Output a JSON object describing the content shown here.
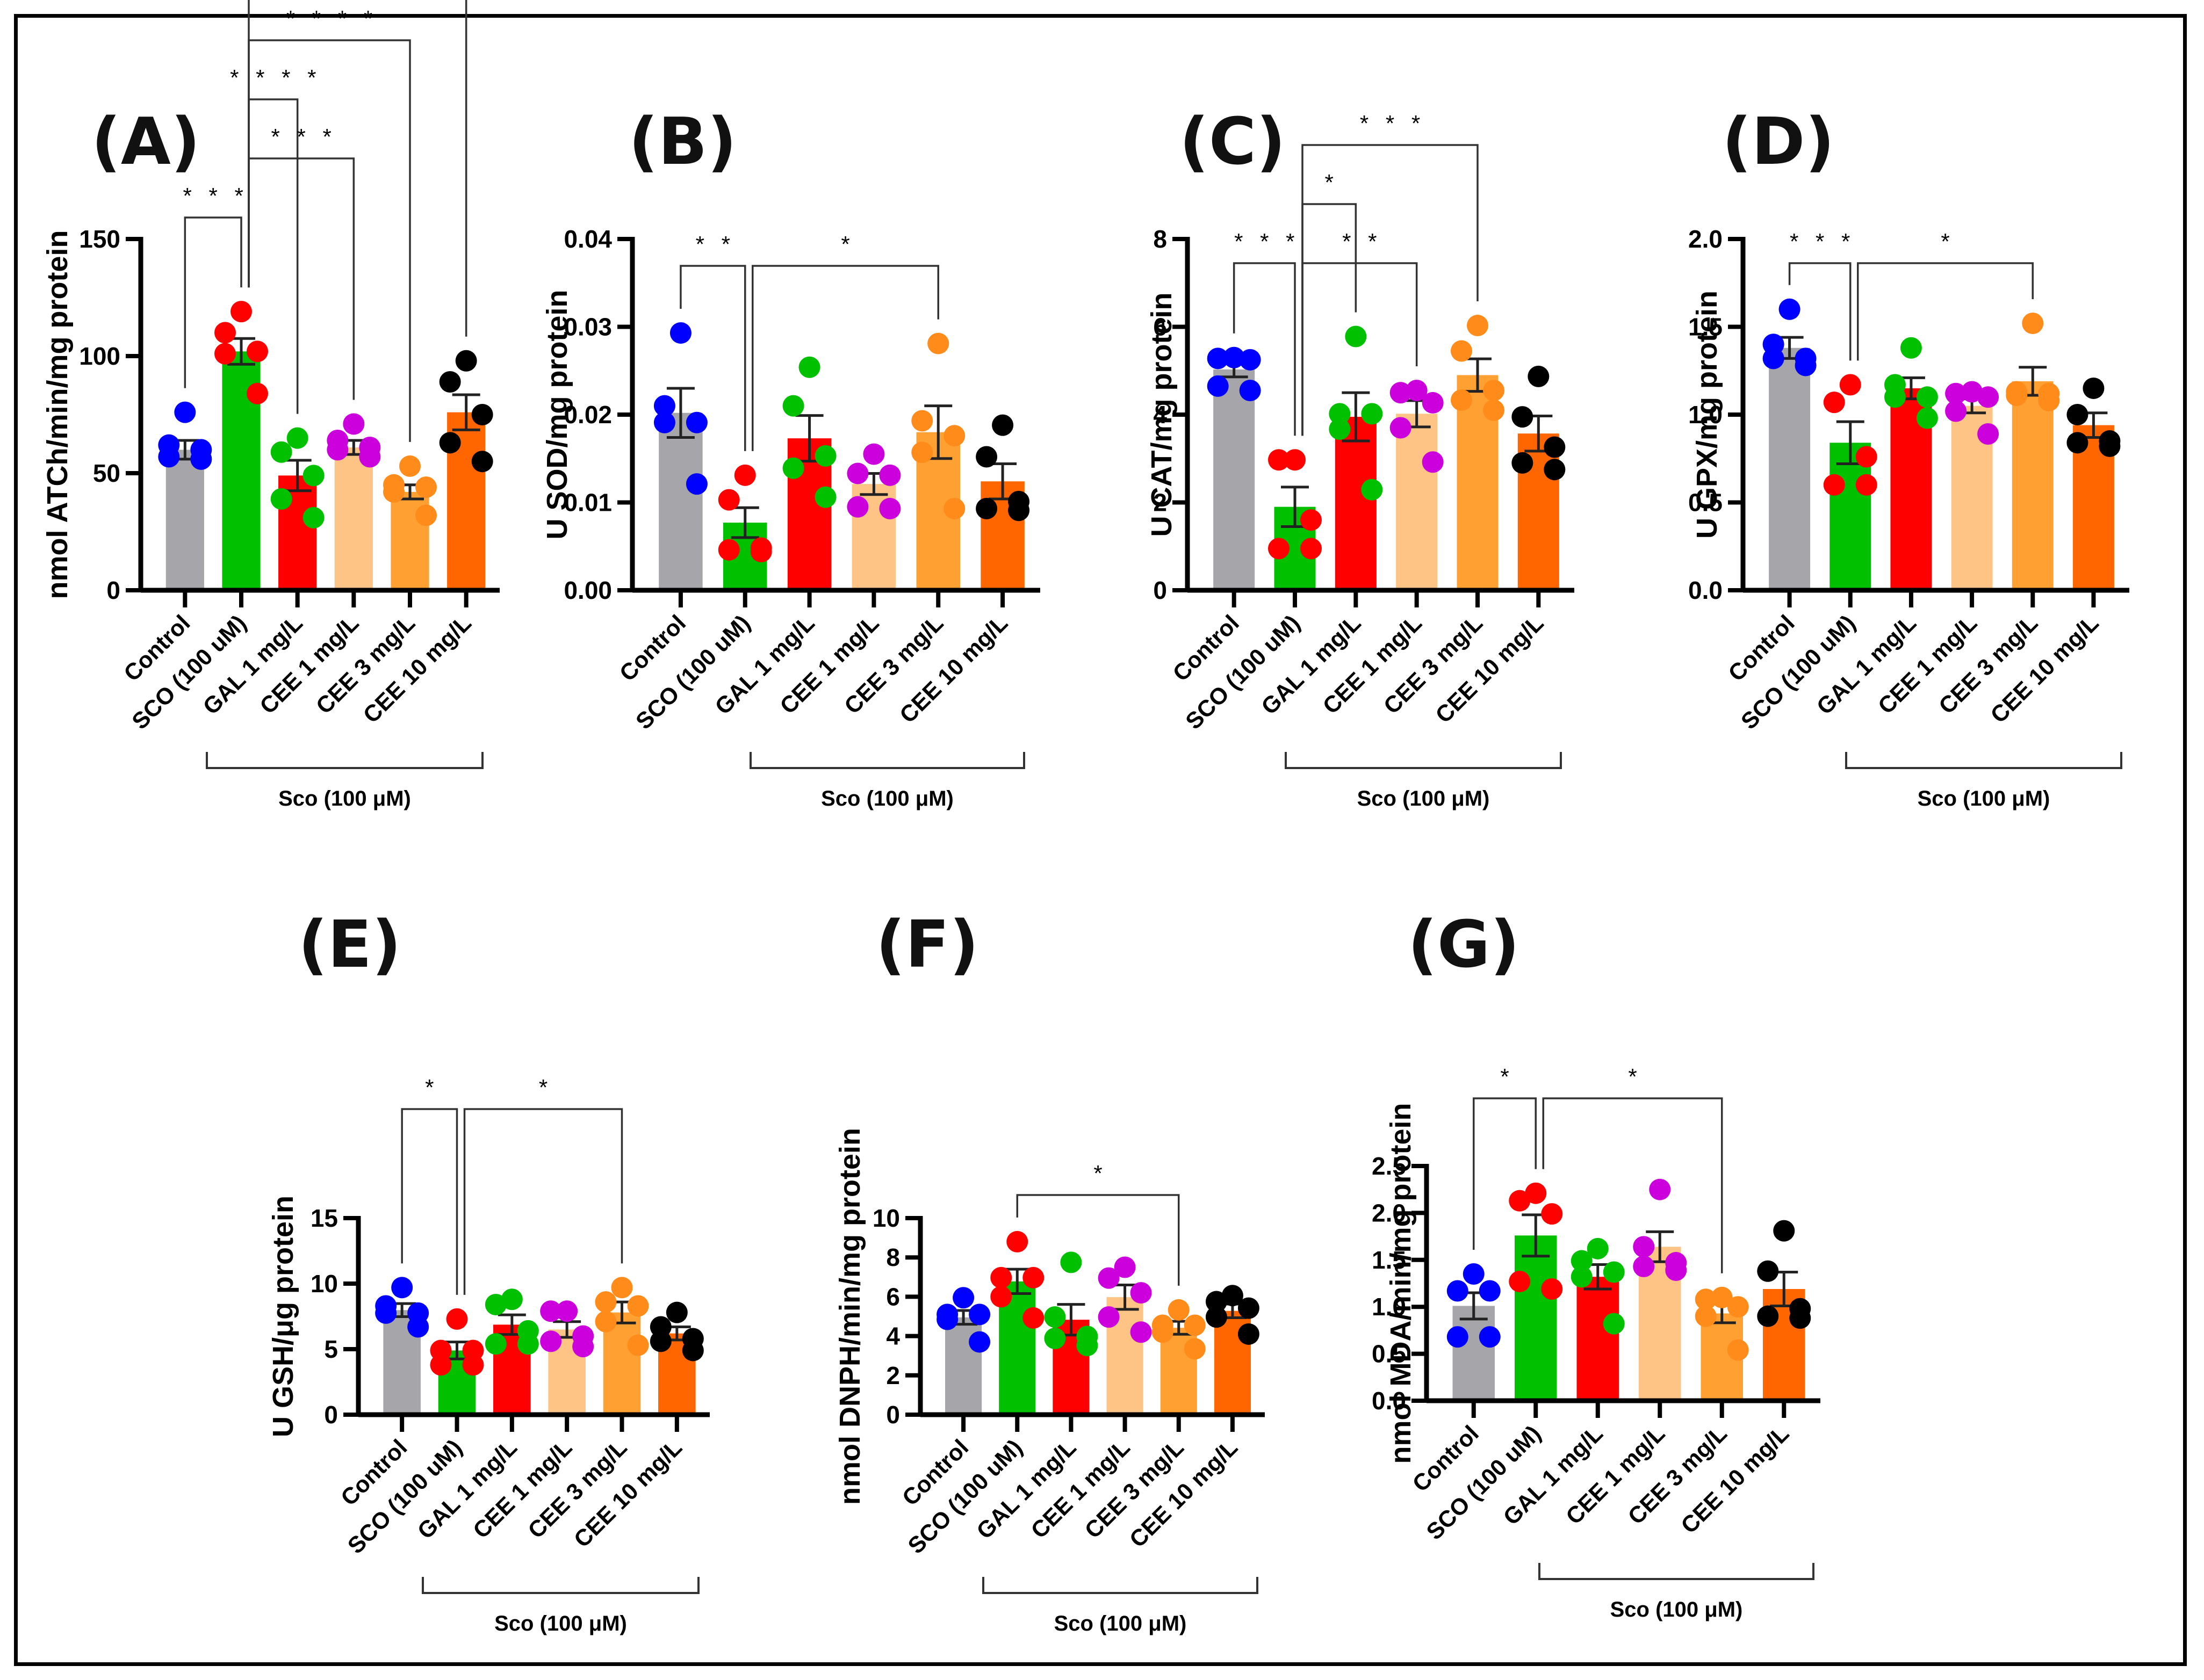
{
  "figure": {
    "group_bracket_label": "Sco (100 μM)",
    "categories": [
      "Control",
      "SCO (100 uM)",
      "GAL 1 mg/L",
      "CEE 1 mg/L",
      "CEE 3 mg/L",
      "CEE 10 mg/L"
    ],
    "bar_colors": [
      "#a5a5aa",
      "#00c000",
      "#ff0000",
      "#fdc486",
      "#ffa033",
      "#ff6600"
    ],
    "point_colors": [
      "#0000ff",
      "#ff0000",
      "#00c000",
      "#cc00dd",
      "#ff8c1a",
      "#000000"
    ]
  },
  "chart_data": [
    {
      "type": "bar",
      "panel": "(A)",
      "title": "",
      "xlabel": "",
      "ylabel": "nmol ATCh/min/mg protein",
      "ylim": [
        0,
        150
      ],
      "yticks": [
        0,
        50,
        100,
        150
      ],
      "ytick_labels": [
        "0",
        "50",
        "100",
        "150"
      ],
      "categories": [
        "Control",
        "SCO (100 uM)",
        "GAL 1 mg/L",
        "CEE 1 mg/L",
        "CEE 3 mg/L",
        "CEE 10 mg/L"
      ],
      "values": [
        60,
        102,
        49,
        61,
        42,
        76
      ],
      "sem": [
        4,
        5.5,
        6.5,
        3,
        3,
        7.5
      ],
      "points": [
        [
          76,
          62,
          60,
          57,
          56
        ],
        [
          119,
          110,
          102,
          101,
          84
        ],
        [
          65,
          59,
          49,
          39,
          31
        ],
        [
          71,
          64,
          61,
          60,
          57
        ],
        [
          53,
          45,
          44,
          42,
          32
        ],
        [
          98,
          89,
          75,
          63,
          55
        ]
      ],
      "significance": [
        {
          "from": 0,
          "to": 1,
          "label": "***"
        },
        {
          "from": 1,
          "to": 2,
          "label": "****"
        },
        {
          "from": 1,
          "to": 3,
          "label": "***"
        },
        {
          "from": 1,
          "to": 4,
          "label": "****"
        },
        {
          "from": 1,
          "to": 5,
          "label": "*"
        }
      ]
    },
    {
      "type": "bar",
      "panel": "(B)",
      "title": "",
      "xlabel": "",
      "ylabel": "U SOD/mg protein",
      "ylim": [
        0,
        0.04
      ],
      "yticks": [
        0,
        0.01,
        0.02,
        0.03,
        0.04
      ],
      "ytick_labels": [
        "0.00",
        "0.01",
        "0.02",
        "0.03",
        "0.04"
      ],
      "categories": [
        "Control",
        "SCO (100 uM)",
        "GAL 1 mg/L",
        "CEE 1 mg/L",
        "CEE 3 mg/L",
        "CEE 10 mg/L"
      ],
      "values": [
        0.0202,
        0.0077,
        0.0173,
        0.0121,
        0.018,
        0.0124
      ],
      "sem": [
        0.0028,
        0.0017,
        0.0026,
        0.0012,
        0.003,
        0.002
      ],
      "points": [
        [
          0.0293,
          0.021,
          0.0191,
          0.0191,
          0.0121
        ],
        [
          0.0131,
          0.0103,
          0.0048,
          0.0046,
          0.0044
        ],
        [
          0.0254,
          0.021,
          0.0153,
          0.0139,
          0.0106
        ],
        [
          0.0155,
          0.0133,
          0.0131,
          0.0095,
          0.0093
        ],
        [
          0.0281,
          0.0193,
          0.0176,
          0.0157,
          0.0093
        ],
        [
          0.0188,
          0.0152,
          0.0101,
          0.0093,
          0.0091
        ]
      ],
      "significance": [
        {
          "from": 0,
          "to": 1,
          "label": "**"
        },
        {
          "from": 1,
          "to": 4,
          "label": "*"
        }
      ]
    },
    {
      "type": "bar",
      "panel": "(C)",
      "title": "",
      "xlabel": "",
      "ylabel": "U  CAT/mg protein",
      "ylim": [
        0,
        8
      ],
      "yticks": [
        0,
        2,
        4,
        6,
        8
      ],
      "ytick_labels": [
        "0",
        "2",
        "4",
        "6",
        "8"
      ],
      "categories": [
        "Control",
        "SCO (100 uM)",
        "GAL 1 mg/L",
        "CEE 1 mg/L",
        "CEE 3 mg/L",
        "CEE 10 mg/L"
      ],
      "values": [
        5.03,
        1.9,
        3.95,
        4.02,
        4.9,
        3.57
      ],
      "sem": [
        0.17,
        0.45,
        0.55,
        0.3,
        0.37,
        0.4
      ],
      "points": [
        [
          5.3,
          5.28,
          5.25,
          4.65,
          4.55
        ],
        [
          2.97,
          2.97,
          1.6,
          0.95,
          0.95
        ],
        [
          5.78,
          4.02,
          4.02,
          3.67,
          2.29
        ],
        [
          4.55,
          4.5,
          4.27,
          3.7,
          2.92
        ],
        [
          6.03,
          5.45,
          4.55,
          4.33,
          4.1
        ],
        [
          4.87,
          3.95,
          3.26,
          2.9,
          2.75
        ]
      ],
      "significance": [
        {
          "from": 0,
          "to": 1,
          "label": "***"
        },
        {
          "from": 1,
          "to": 2,
          "label": "*"
        },
        {
          "from": 1,
          "to": 3,
          "label": "**"
        },
        {
          "from": 1,
          "to": 4,
          "label": "***"
        }
      ]
    },
    {
      "type": "bar",
      "panel": "(D)",
      "title": "",
      "xlabel": "",
      "ylabel": "U  GPX/mg protein",
      "ylim": [
        0,
        2.0
      ],
      "yticks": [
        0,
        0.5,
        1.0,
        1.5,
        2.0
      ],
      "ytick_labels": [
        "0.0",
        "0.5",
        "1.0",
        "1.5",
        "2.0"
      ],
      "categories": [
        "Control",
        "SCO (100 uM)",
        "GAL 1 mg/L",
        "CEE 1 mg/L",
        "CEE 3 mg/L",
        "CEE 10 mg/L"
      ],
      "values": [
        1.38,
        0.84,
        1.15,
        1.05,
        1.19,
        0.94
      ],
      "sem": [
        0.06,
        0.12,
        0.06,
        0.04,
        0.08,
        0.07
      ],
      "points": [
        [
          1.6,
          1.4,
          1.32,
          1.32,
          1.28
        ],
        [
          1.17,
          1.07,
          0.76,
          0.6,
          0.6
        ],
        [
          1.38,
          1.17,
          1.1,
          1.1,
          0.98
        ],
        [
          1.13,
          1.12,
          1.1,
          1.02,
          0.89
        ],
        [
          1.52,
          1.13,
          1.12,
          1.11,
          1.08
        ],
        [
          1.15,
          1.0,
          0.85,
          0.84,
          0.82
        ]
      ],
      "significance": [
        {
          "from": 0,
          "to": 1,
          "label": "***"
        },
        {
          "from": 1,
          "to": 4,
          "label": "*"
        }
      ]
    },
    {
      "type": "bar",
      "panel": "(E)",
      "title": "",
      "xlabel": "",
      "ylabel": "U  GSH/μg protein",
      "ylim": [
        0,
        15
      ],
      "yticks": [
        0,
        5,
        10,
        15
      ],
      "ytick_labels": [
        "0",
        "5",
        "10",
        "15"
      ],
      "categories": [
        "Control",
        "SCO (100 uM)",
        "GAL 1 mg/L",
        "CEE 1 mg/L",
        "CEE 3 mg/L",
        "CEE 10 mg/L"
      ],
      "values": [
        7.98,
        4.9,
        6.87,
        6.5,
        7.8,
        6.2
      ],
      "sem": [
        0.5,
        0.65,
        0.75,
        0.6,
        0.8,
        0.5
      ],
      "points": [
        [
          9.7,
          8.3,
          7.75,
          7.75,
          6.7
        ],
        [
          7.3,
          4.9,
          4.9,
          3.8,
          3.8
        ],
        [
          8.8,
          8.4,
          6.4,
          5.4,
          5.4
        ],
        [
          7.9,
          7.9,
          6.0,
          5.6,
          5.2
        ],
        [
          9.7,
          8.6,
          8.3,
          7.1,
          5.3
        ],
        [
          7.8,
          6.7,
          5.8,
          5.6,
          4.9
        ]
      ],
      "significance": [
        {
          "from": 0,
          "to": 1,
          "label": "*"
        },
        {
          "from": 1,
          "to": 4,
          "label": "*"
        }
      ]
    },
    {
      "type": "bar",
      "panel": "(F)",
      "title": "",
      "xlabel": "",
      "ylabel": "nmol DNPH/min/mg protein",
      "ylim": [
        0,
        10
      ],
      "yticks": [
        0,
        2,
        4,
        6,
        8,
        10
      ],
      "ytick_labels": [
        "0",
        "2",
        "4",
        "6",
        "8",
        "10"
      ],
      "categories": [
        "Control",
        "SCO (100 uM)",
        "GAL 1 mg/L",
        "CEE 1 mg/L",
        "CEE 3 mg/L",
        "CEE 10 mg/L"
      ],
      "values": [
        4.95,
        6.78,
        4.83,
        5.98,
        4.42,
        5.28
      ],
      "sem": [
        0.35,
        0.62,
        0.78,
        0.62,
        0.33,
        0.35
      ],
      "points": [
        [
          5.95,
          5.1,
          5.1,
          4.85,
          3.7
        ],
        [
          8.8,
          6.97,
          6.97,
          6.0,
          4.92
        ],
        [
          7.75,
          4.97,
          3.98,
          3.88,
          3.52
        ],
        [
          7.5,
          6.95,
          6.2,
          4.97,
          4.2
        ],
        [
          5.33,
          4.55,
          4.55,
          4.2,
          3.35
        ],
        [
          6.06,
          5.75,
          5.42,
          4.97,
          4.1
        ]
      ],
      "significance": [
        {
          "from": 1,
          "to": 4,
          "label": "*"
        }
      ]
    },
    {
      "type": "bar",
      "panel": "(G)",
      "title": "",
      "xlabel": "",
      "ylabel": "nmol MDA/min/mg protein",
      "ylim": [
        0,
        2.5
      ],
      "yticks": [
        0,
        0.5,
        1.0,
        1.5,
        2.0,
        2.5
      ],
      "ytick_labels": [
        "0.0",
        "0.5",
        "1.0",
        "1.5",
        "2.0",
        "2.5"
      ],
      "categories": [
        "Control",
        "SCO (100 uM)",
        "GAL 1 mg/L",
        "CEE 1 mg/L",
        "CEE 3 mg/L",
        "CEE 10 mg/L"
      ],
      "values": [
        1.01,
        1.76,
        1.32,
        1.64,
        0.93,
        1.19
      ],
      "sem": [
        0.14,
        0.22,
        0.13,
        0.16,
        0.1,
        0.18
      ],
      "points": [
        [
          1.35,
          1.17,
          1.17,
          0.68,
          0.68
        ],
        [
          2.21,
          2.13,
          1.99,
          1.27,
          1.19
        ],
        [
          1.62,
          1.49,
          1.37,
          1.32,
          0.82
        ],
        [
          2.25,
          1.64,
          1.47,
          1.43,
          1.39
        ],
        [
          1.1,
          1.08,
          1.0,
          0.9,
          0.54
        ],
        [
          1.81,
          1.38,
          0.98,
          0.9,
          0.88
        ]
      ],
      "significance": [
        {
          "from": 0,
          "to": 1,
          "label": "*"
        },
        {
          "from": 1,
          "to": 4,
          "label": "*"
        }
      ]
    }
  ]
}
